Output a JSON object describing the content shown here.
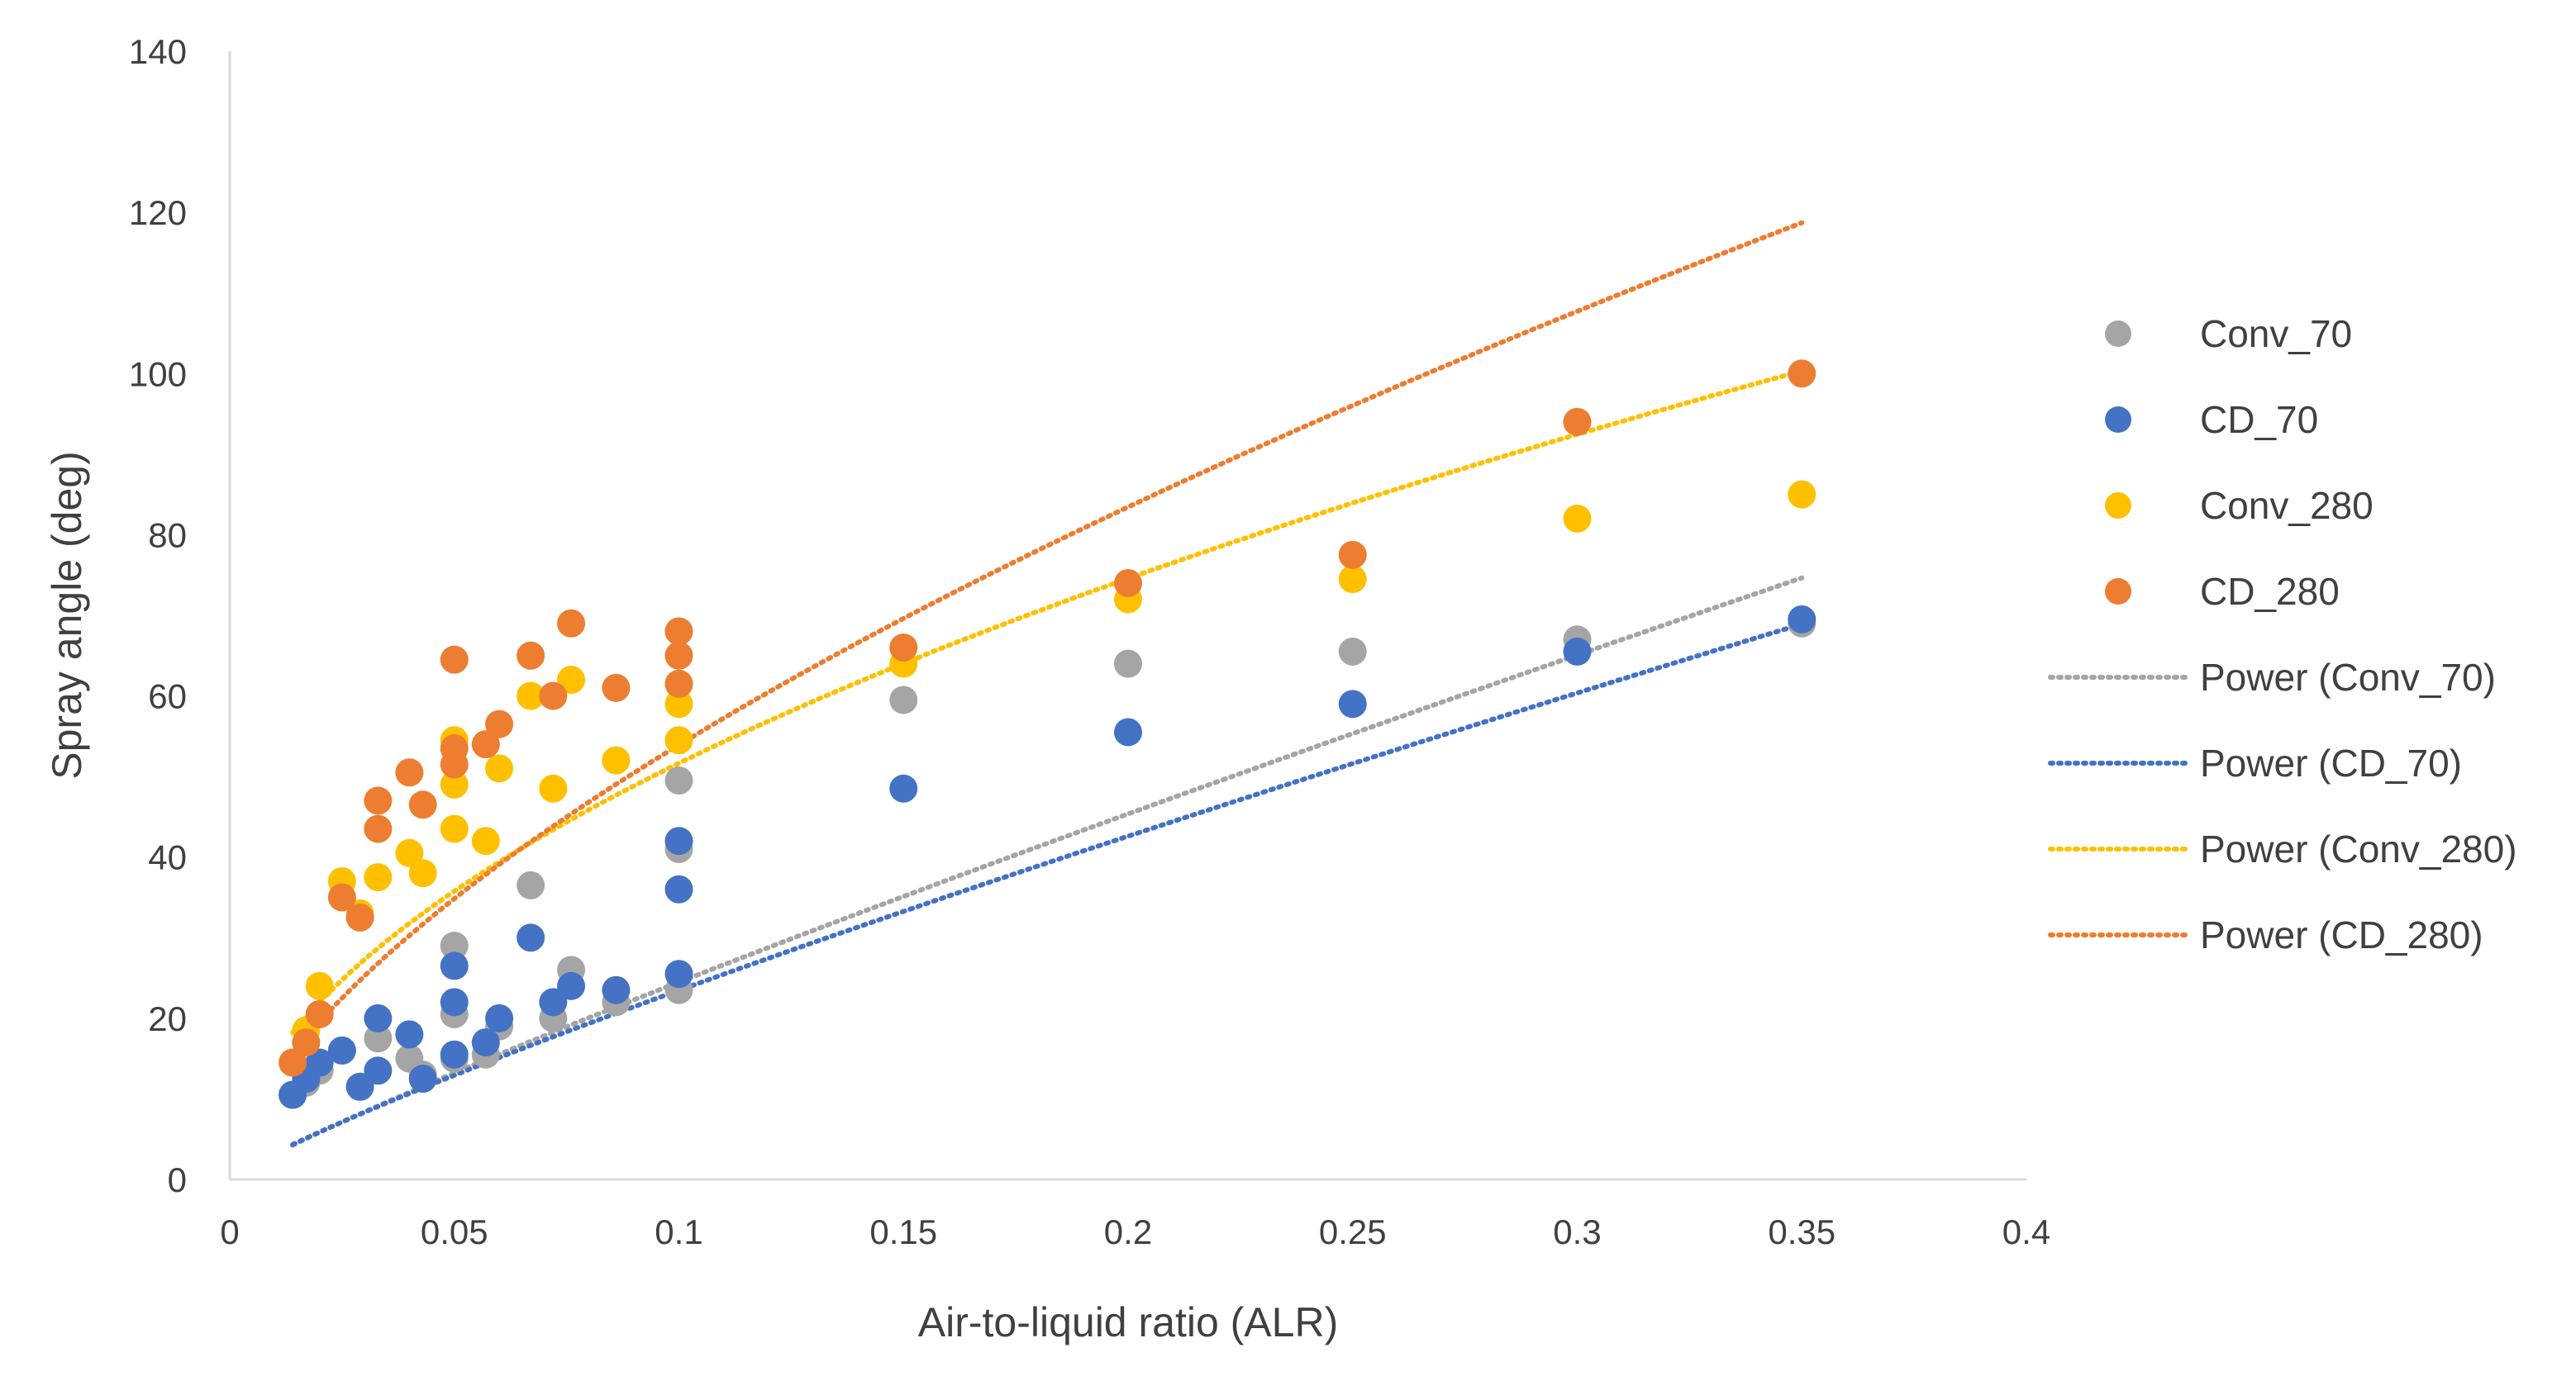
{
  "chart_data": {
    "type": "scatter",
    "title": "",
    "xlabel": "Air-to-liquid ratio (ALR)",
    "ylabel": "Spray angle (deg)",
    "xlim": [
      0,
      0.4
    ],
    "ylim": [
      0,
      140
    ],
    "xticks": [
      0,
      0.05,
      0.1,
      0.15,
      0.2,
      0.25,
      0.3,
      0.35,
      0.4
    ],
    "xtick_labels": [
      "0",
      "0.05",
      "0.1",
      "0.15",
      "0.2",
      "0.25",
      "0.3",
      "0.35",
      "0.4"
    ],
    "yticks": [
      0,
      20,
      40,
      60,
      80,
      100,
      120,
      140
    ],
    "ytick_labels": [
      "0",
      "20",
      "40",
      "60",
      "80",
      "100",
      "120",
      "140"
    ],
    "grid": false,
    "legend_position": "right",
    "series": [
      {
        "name": "Conv_70",
        "color": "#a5a5a5",
        "points": [
          [
            0.014,
            10.5
          ],
          [
            0.017,
            12
          ],
          [
            0.02,
            13.5
          ],
          [
            0.025,
            16
          ],
          [
            0.029,
            11.5
          ],
          [
            0.033,
            17.5
          ],
          [
            0.04,
            15
          ],
          [
            0.043,
            13
          ],
          [
            0.05,
            29
          ],
          [
            0.05,
            20.5
          ],
          [
            0.05,
            15
          ],
          [
            0.057,
            15.5
          ],
          [
            0.06,
            19
          ],
          [
            0.067,
            36.5
          ],
          [
            0.072,
            20
          ],
          [
            0.076,
            26
          ],
          [
            0.086,
            22
          ],
          [
            0.1,
            49.5
          ],
          [
            0.1,
            41
          ],
          [
            0.1,
            23.5
          ],
          [
            0.15,
            59.5
          ],
          [
            0.2,
            64
          ],
          [
            0.25,
            65.5
          ],
          [
            0.3,
            67
          ],
          [
            0.35,
            69
          ]
        ]
      },
      {
        "name": "CD_70",
        "color": "#4472c4",
        "points": [
          [
            0.014,
            10.5
          ],
          [
            0.017,
            12.5
          ],
          [
            0.02,
            14.5
          ],
          [
            0.025,
            16
          ],
          [
            0.029,
            11.5
          ],
          [
            0.033,
            20
          ],
          [
            0.033,
            13.5
          ],
          [
            0.04,
            18
          ],
          [
            0.043,
            12.5
          ],
          [
            0.05,
            26.5
          ],
          [
            0.05,
            22
          ],
          [
            0.05,
            15.5
          ],
          [
            0.057,
            17
          ],
          [
            0.06,
            20
          ],
          [
            0.067,
            30
          ],
          [
            0.072,
            22
          ],
          [
            0.076,
            24
          ],
          [
            0.086,
            23.5
          ],
          [
            0.1,
            42
          ],
          [
            0.1,
            36
          ],
          [
            0.1,
            25.5
          ],
          [
            0.15,
            48.5
          ],
          [
            0.2,
            55.5
          ],
          [
            0.25,
            59
          ],
          [
            0.3,
            65.5
          ],
          [
            0.35,
            69.5
          ]
        ]
      },
      {
        "name": "Conv_280",
        "color": "#ffc000",
        "points": [
          [
            0.017,
            18.5
          ],
          [
            0.02,
            24
          ],
          [
            0.025,
            37
          ],
          [
            0.029,
            33
          ],
          [
            0.033,
            37.5
          ],
          [
            0.04,
            40.5
          ],
          [
            0.043,
            38
          ],
          [
            0.05,
            54.5
          ],
          [
            0.05,
            49
          ],
          [
            0.05,
            43.5
          ],
          [
            0.057,
            42
          ],
          [
            0.06,
            51
          ],
          [
            0.067,
            60
          ],
          [
            0.072,
            48.5
          ],
          [
            0.076,
            62
          ],
          [
            0.086,
            52
          ],
          [
            0.1,
            61.5
          ],
          [
            0.1,
            59
          ],
          [
            0.1,
            54.5
          ],
          [
            0.15,
            64
          ],
          [
            0.2,
            72
          ],
          [
            0.25,
            74.5
          ],
          [
            0.3,
            82
          ],
          [
            0.35,
            85
          ]
        ]
      },
      {
        "name": "CD_280",
        "color": "#ed7d31",
        "points": [
          [
            0.014,
            14.5
          ],
          [
            0.017,
            17
          ],
          [
            0.02,
            20.5
          ],
          [
            0.025,
            35
          ],
          [
            0.029,
            32.5
          ],
          [
            0.033,
            47
          ],
          [
            0.033,
            43.5
          ],
          [
            0.04,
            50.5
          ],
          [
            0.043,
            46.5
          ],
          [
            0.05,
            64.5
          ],
          [
            0.05,
            53.5
          ],
          [
            0.05,
            51.5
          ],
          [
            0.057,
            54
          ],
          [
            0.06,
            56.5
          ],
          [
            0.067,
            65
          ],
          [
            0.072,
            60
          ],
          [
            0.076,
            69
          ],
          [
            0.086,
            61
          ],
          [
            0.1,
            68
          ],
          [
            0.1,
            65
          ],
          [
            0.1,
            61.5
          ],
          [
            0.15,
            66
          ],
          [
            0.2,
            74
          ],
          [
            0.25,
            77.5
          ],
          [
            0.3,
            94
          ],
          [
            0.35,
            100
          ]
        ]
      }
    ],
    "trendlines": [
      {
        "name": "Power (Conv_70)",
        "type": "power",
        "color": "#a5a5a5",
        "a": 190,
        "b": 0.89,
        "x_range": [
          0.014,
          0.35
        ]
      },
      {
        "name": "Power (CD_70)",
        "type": "power",
        "color": "#4472c4",
        "a": 170,
        "b": 0.86,
        "x_range": [
          0.014,
          0.35
        ]
      },
      {
        "name": "Power (Conv_280)",
        "type": "power",
        "color": "#ffc000",
        "a": 175,
        "b": 0.53,
        "x_range": [
          0.014,
          0.35
        ]
      },
      {
        "name": "Power (CD_280)",
        "type": "power",
        "color": "#ed7d31",
        "a": 230,
        "b": 0.63,
        "x_range": [
          0.014,
          0.35
        ]
      }
    ],
    "legend": [
      {
        "label": "Conv_70",
        "kind": "marker",
        "color": "#a5a5a5"
      },
      {
        "label": "CD_70",
        "kind": "marker",
        "color": "#4472c4"
      },
      {
        "label": "Conv_280",
        "kind": "marker",
        "color": "#ffc000"
      },
      {
        "label": "CD_280",
        "kind": "marker",
        "color": "#ed7d31"
      },
      {
        "label": "Power (Conv_70)",
        "kind": "line",
        "color": "#a5a5a5"
      },
      {
        "label": "Power (CD_70)",
        "kind": "line",
        "color": "#4472c4"
      },
      {
        "label": "Power (Conv_280)",
        "kind": "line",
        "color": "#ffc000"
      },
      {
        "label": "Power (CD_280)",
        "kind": "line",
        "color": "#ed7d31"
      }
    ],
    "axis_color": "#d9d9d9",
    "text_color": "#404040"
  }
}
